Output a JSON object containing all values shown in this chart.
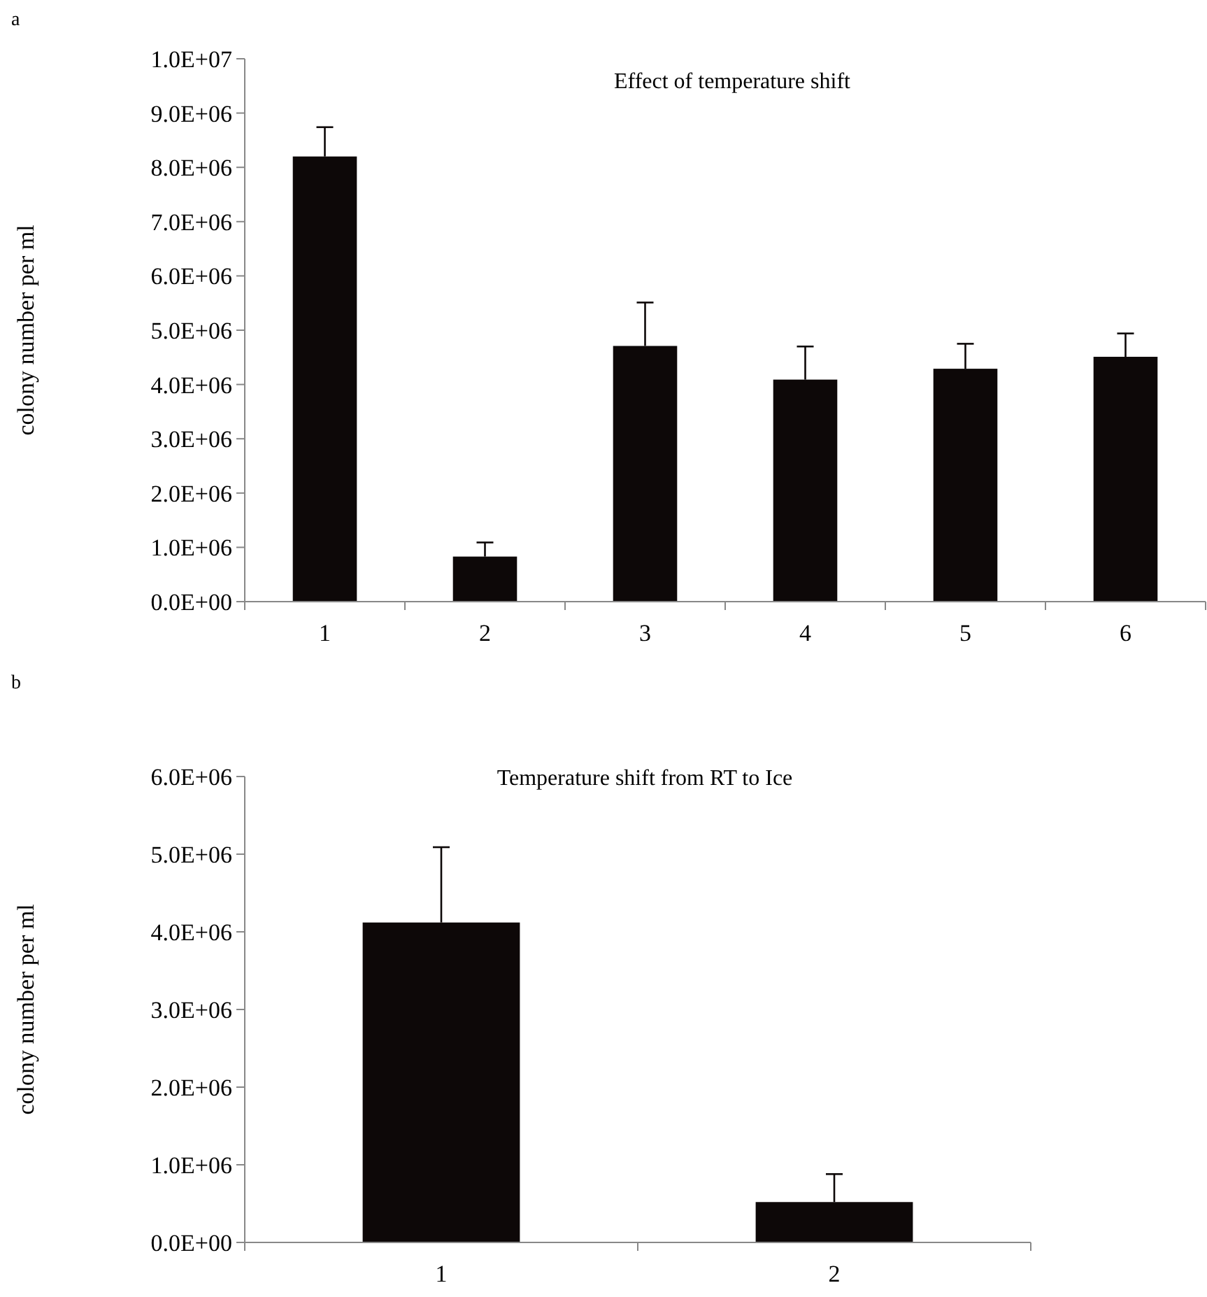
{
  "chart_data": [
    {
      "type": "bar",
      "title": "Effect of temperature shift",
      "ylabel": "colony number per ml",
      "annotations": [
        "a"
      ],
      "categories": [
        "1",
        "2",
        "3",
        "4",
        "5",
        "6"
      ],
      "values": [
        8200000,
        830000,
        4710000,
        4090000,
        4290000,
        4510000
      ],
      "errors": [
        [
          8200000,
          8740000
        ],
        [
          830000,
          1090000
        ],
        [
          4710000,
          5510000
        ],
        [
          4090000,
          4700000
        ],
        [
          4290000,
          4750000
        ],
        [
          4510000,
          4940000
        ]
      ],
      "color": "#0d0808",
      "ylim": [
        0,
        10000000
      ],
      "yticks": [
        {
          "value": 0,
          "label": "0.0E+00"
        },
        {
          "value": 1000000,
          "label": "1.0E+06"
        },
        {
          "value": 2000000,
          "label": "2.0E+06"
        },
        {
          "value": 3000000,
          "label": "3.0E+06"
        },
        {
          "value": 4000000,
          "label": "4.0E+06"
        },
        {
          "value": 5000000,
          "label": "5.0E+06"
        },
        {
          "value": 6000000,
          "label": "6.0E+06"
        },
        {
          "value": 7000000,
          "label": "7.0E+06"
        },
        {
          "value": 8000000,
          "label": "8.0E+06"
        },
        {
          "value": 9000000,
          "label": "9.0E+06"
        },
        {
          "value": 10000000,
          "label": "1.0E+07"
        }
      ],
      "grid": false
    },
    {
      "type": "bar",
      "title": "Temperature shift from RT to Ice",
      "ylabel": "colony number per ml",
      "annotations": [
        "b"
      ],
      "categories": [
        "1",
        "2"
      ],
      "values": [
        4120000,
        520000
      ],
      "errors": [
        [
          4120000,
          5090000
        ],
        [
          520000,
          880000
        ]
      ],
      "color": "#0d0808",
      "ylim": [
        0,
        6000000
      ],
      "yticks": [
        {
          "value": 0,
          "label": "0.0E+00"
        },
        {
          "value": 1000000,
          "label": "1.0E+06"
        },
        {
          "value": 2000000,
          "label": "2.0E+06"
        },
        {
          "value": 3000000,
          "label": "3.0E+06"
        },
        {
          "value": 4000000,
          "label": "4.0E+06"
        },
        {
          "value": 5000000,
          "label": "5.0E+06"
        },
        {
          "value": 6000000,
          "label": "6.0E+06"
        }
      ],
      "grid": false
    }
  ]
}
